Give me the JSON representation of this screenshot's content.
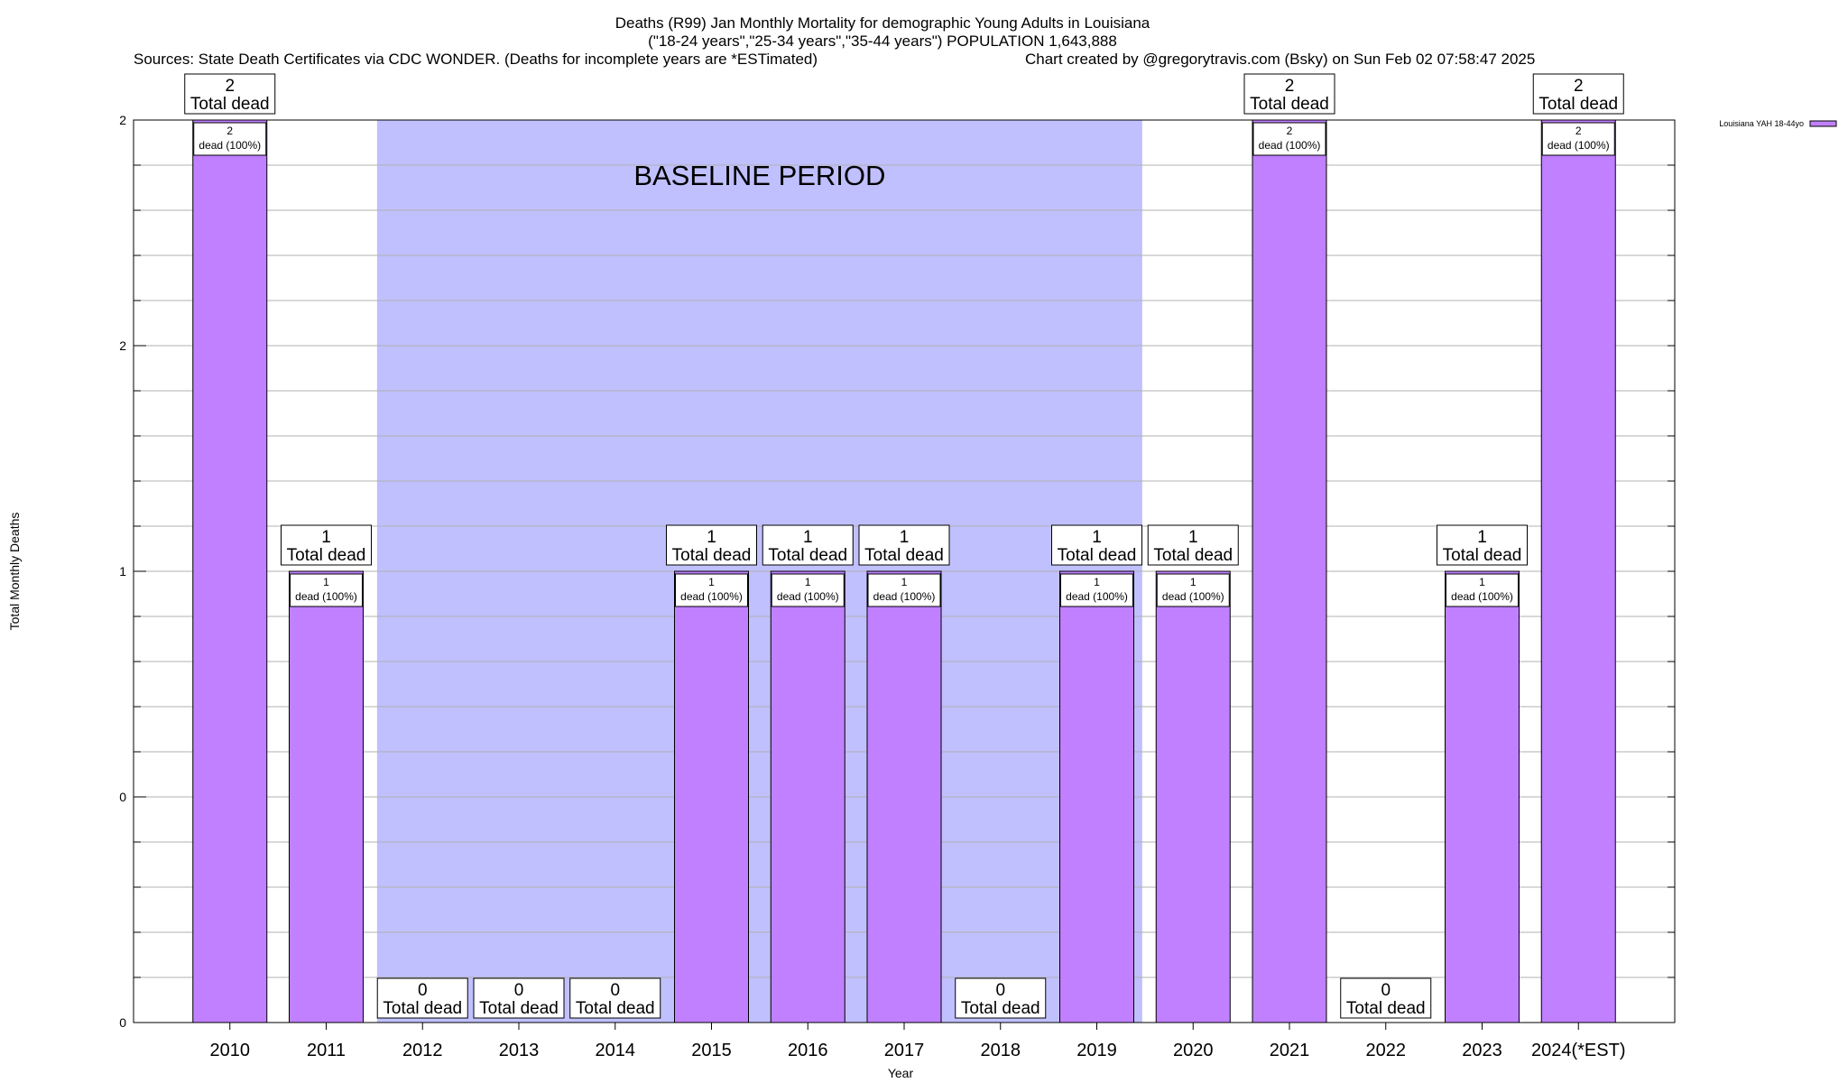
{
  "header": {
    "title_line1": "Deaths (R99) Jan Monthly Mortality for demographic Young Adults in Louisiana",
    "title_line2": "(\"18-24 years\",\"25-34 years\",\"35-44 years\") POPULATION 1,643,888",
    "sources": "Sources: State Death Certificates via CDC WONDER. (Deaths for incomplete years are *ESTimated)",
    "credit": "Chart created by @gregorytravis.com (Bsky) on Sun Feb 02 07:58:47 2025"
  },
  "chart_data": {
    "type": "bar",
    "title": "Deaths (R99) Jan Monthly Mortality for demographic Young Adults in Louisiana",
    "subtitle": "(\"18-24 years\",\"25-34 years\",\"35-44 years\") POPULATION 1,643,888",
    "xlabel": "Year",
    "ylabel": "Total Monthly Deaths",
    "ylim": [
      0,
      2
    ],
    "ytick_values": [
      0,
      0.5,
      1,
      1.5,
      2
    ],
    "ytick_labels": [
      "0",
      "0",
      "1",
      "2",
      "2"
    ],
    "grid": true,
    "legend_position": "top-right",
    "categories": [
      "2010",
      "2011",
      "2012",
      "2013",
      "2014",
      "2015",
      "2016",
      "2017",
      "2018",
      "2019",
      "2020",
      "2021",
      "2022",
      "2023",
      "2024(*EST)"
    ],
    "series": [
      {
        "name": "Louisiana YAH 18-44yo",
        "color": "#c080ff",
        "values": [
          2,
          1,
          0,
          0,
          0,
          1,
          1,
          1,
          0,
          1,
          1,
          2,
          0,
          1,
          2
        ]
      }
    ],
    "total_labels": [
      "2",
      "1",
      "0",
      "0",
      "0",
      "1",
      "1",
      "1",
      "0",
      "1",
      "1",
      "2",
      "0",
      "1",
      "2"
    ],
    "total_suffix": "Total dead",
    "inner_labels": [
      "2",
      "1",
      "",
      "",
      "",
      "1",
      "1",
      "1",
      "",
      "1",
      "1",
      "2",
      "",
      "1",
      "2"
    ],
    "inner_suffix": "dead (100%)",
    "baseline_shading": {
      "label": "BASELINE PERIOD",
      "start_category": "2012",
      "end_category": "2019",
      "color": "#c0c0ff"
    }
  }
}
